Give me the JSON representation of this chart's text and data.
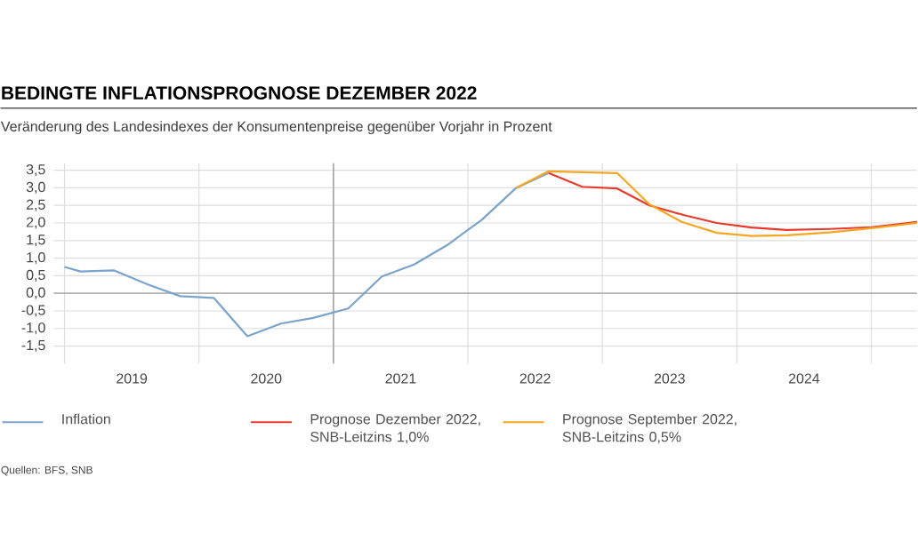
{
  "chart_data": {
    "type": "line",
    "title": "BEDINGTE INFLATIONSPROGNOSE DEZEMBER 2022",
    "subtitle": "Veränderung des Landesindexes der Konsumentenpreise gegenüber Vorjahr in Prozent",
    "annotations": [
      "Quellen: BFS, SNB"
    ],
    "xlim": [
      2018.92,
      2025.34
    ],
    "ylim": [
      -2.0,
      3.7
    ],
    "xticks": [
      {
        "value": 2019,
        "label": null
      },
      {
        "value": 2019.5,
        "label": "2019"
      },
      {
        "value": 2020,
        "label": null
      },
      {
        "value": 2020.5,
        "label": "2020"
      },
      {
        "value": 2021,
        "label": null
      },
      {
        "value": 2021.5,
        "label": "2021"
      },
      {
        "value": 2022,
        "label": null
      },
      {
        "value": 2022.5,
        "label": "2022"
      },
      {
        "value": 2023,
        "label": null
      },
      {
        "value": 2023.5,
        "label": "2023"
      },
      {
        "value": 2024,
        "label": null
      },
      {
        "value": 2024.5,
        "label": "2024"
      },
      {
        "value": 2025,
        "label": null
      }
    ],
    "yticks": [
      {
        "value": -1.5,
        "label": "-1,5"
      },
      {
        "value": -1.0,
        "label": "-1,0"
      },
      {
        "value": -0.5,
        "label": "-0,5"
      },
      {
        "value": 0.0,
        "label": "0,0"
      },
      {
        "value": 0.5,
        "label": "0,5"
      },
      {
        "value": 1.0,
        "label": "1,0"
      },
      {
        "value": 1.5,
        "label": "1,5"
      },
      {
        "value": 2.0,
        "label": "2,0"
      },
      {
        "value": 2.5,
        "label": "2,5"
      },
      {
        "value": 3.0,
        "label": "3,0"
      },
      {
        "value": 3.5,
        "label": "3,5"
      }
    ],
    "grid": true,
    "legend": "bottom",
    "ref_lines": [
      {
        "axis": "y",
        "value": 0,
        "color": "#b4b4b4"
      },
      {
        "axis": "x",
        "value": 2021,
        "color": "#9a9a9a"
      }
    ],
    "series": [
      {
        "name": "Inflation",
        "color": "#7ba3cc",
        "x": [
          2019.0,
          2019.12,
          2019.37,
          2019.62,
          2019.86,
          2020.11,
          2020.36,
          2020.61,
          2020.85,
          2021.11,
          2021.36,
          2021.6,
          2021.85,
          2021.97,
          2022.1,
          2022.36,
          2022.6
        ],
        "values": [
          0.75,
          0.62,
          0.65,
          0.25,
          -0.08,
          -0.13,
          -1.22,
          -0.86,
          -0.7,
          -0.43,
          0.48,
          0.82,
          1.38,
          1.72,
          2.08,
          3.0,
          3.42
        ]
      },
      {
        "name": "Prognose Dezember 2022, SNB-Leitzins 1,0%",
        "color": "#e8392d",
        "x": [
          2022.6,
          2022.85,
          2023.11,
          2023.35,
          2023.61,
          2023.85,
          2024.11,
          2024.37,
          2024.69,
          2025.0,
          2025.34
        ],
        "values": [
          3.42,
          3.03,
          2.98,
          2.5,
          2.22,
          2.0,
          1.87,
          1.8,
          1.83,
          1.88,
          2.03
        ]
      },
      {
        "name": "Prognose September 2022, SNB-Leitzins 0,5%",
        "color": "#f5a623",
        "x": [
          2022.36,
          2022.6,
          2023.11,
          2023.35,
          2023.59,
          2023.85,
          2024.11,
          2024.37,
          2024.69,
          2025.0,
          2025.34
        ],
        "values": [
          3.0,
          3.47,
          3.42,
          2.53,
          2.03,
          1.72,
          1.63,
          1.65,
          1.73,
          1.85,
          2.0
        ]
      }
    ]
  }
}
